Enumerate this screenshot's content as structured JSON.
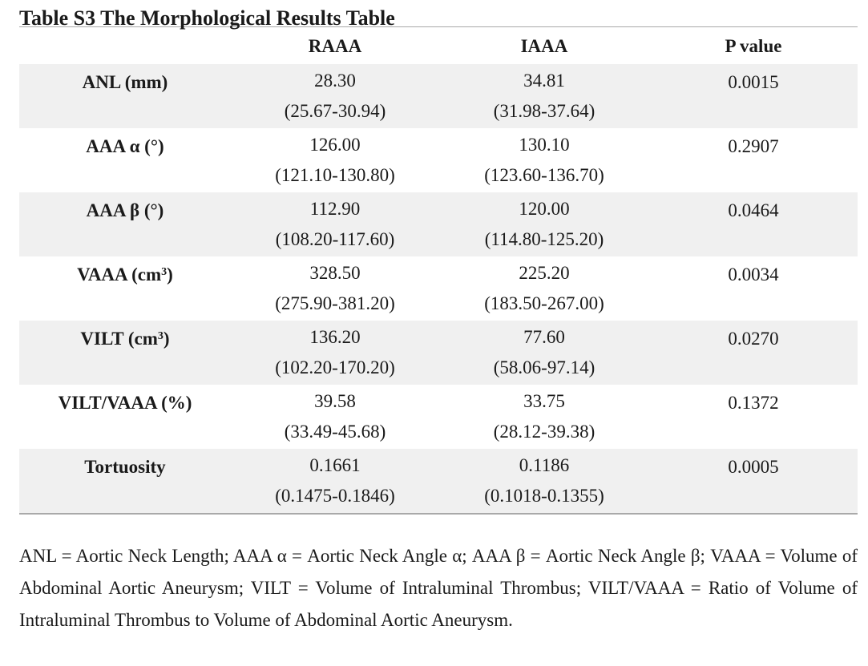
{
  "title": "Table S3 The Morphological Results Table",
  "table": {
    "headers": [
      "",
      "RAAA",
      "IAAA",
      "P value"
    ],
    "rows": [
      {
        "label": "ANL (mm)",
        "label_sup": "",
        "label_after": "",
        "raaa_median": "28.30",
        "raaa_range": "(25.67-30.94)",
        "iaaa_median": "34.81",
        "iaaa_range": "(31.98-37.64)",
        "p": "0.0015"
      },
      {
        "label": "AAA α (°)",
        "label_sup": "",
        "label_after": "",
        "raaa_median": "126.00",
        "raaa_range": "(121.10-130.80)",
        "iaaa_median": "130.10",
        "iaaa_range": "(123.60-136.70)",
        "p": "0.2907"
      },
      {
        "label": "AAA β (°)",
        "label_sup": "",
        "label_after": "",
        "raaa_median": "112.90",
        "raaa_range": "(108.20-117.60)",
        "iaaa_median": "120.00",
        "iaaa_range": "(114.80-125.20)",
        "p": "0.0464"
      },
      {
        "label": "VAAA (cm",
        "label_sup": "3",
        "label_after": ")",
        "raaa_median": "328.50",
        "raaa_range": "(275.90-381.20)",
        "iaaa_median": "225.20",
        "iaaa_range": "(183.50-267.00)",
        "p": "0.0034"
      },
      {
        "label": "VILT (cm",
        "label_sup": "3",
        "label_after": ")",
        "raaa_median": "136.20",
        "raaa_range": "(102.20-170.20)",
        "iaaa_median": "77.60",
        "iaaa_range": "(58.06-97.14)",
        "p": "0.0270"
      },
      {
        "label": "VILT/VAAA (%)",
        "label_sup": "",
        "label_after": "",
        "raaa_median": "39.58",
        "raaa_range": "(33.49-45.68)",
        "iaaa_median": "33.75",
        "iaaa_range": "(28.12-39.38)",
        "p": "0.1372"
      },
      {
        "label": "Tortuosity",
        "label_sup": "",
        "label_after": "",
        "raaa_median": "0.1661",
        "raaa_range": "(0.1475-0.1846)",
        "iaaa_median": "0.1186",
        "iaaa_range": "(0.1018-0.1355)",
        "p": "0.0005"
      }
    ]
  },
  "footnote": "ANL = Aortic Neck Length; AAA α = Aortic Neck Angle α; AAA β = Aortic Neck Angle β; VAAA = Volume of Abdominal Aortic Aneurysm; VILT = Volume of Intraluminal Thrombus; VILT/VAAA = Ratio of Volume of Intraluminal Thrombus to Volume of Abdominal Aortic Aneurysm."
}
